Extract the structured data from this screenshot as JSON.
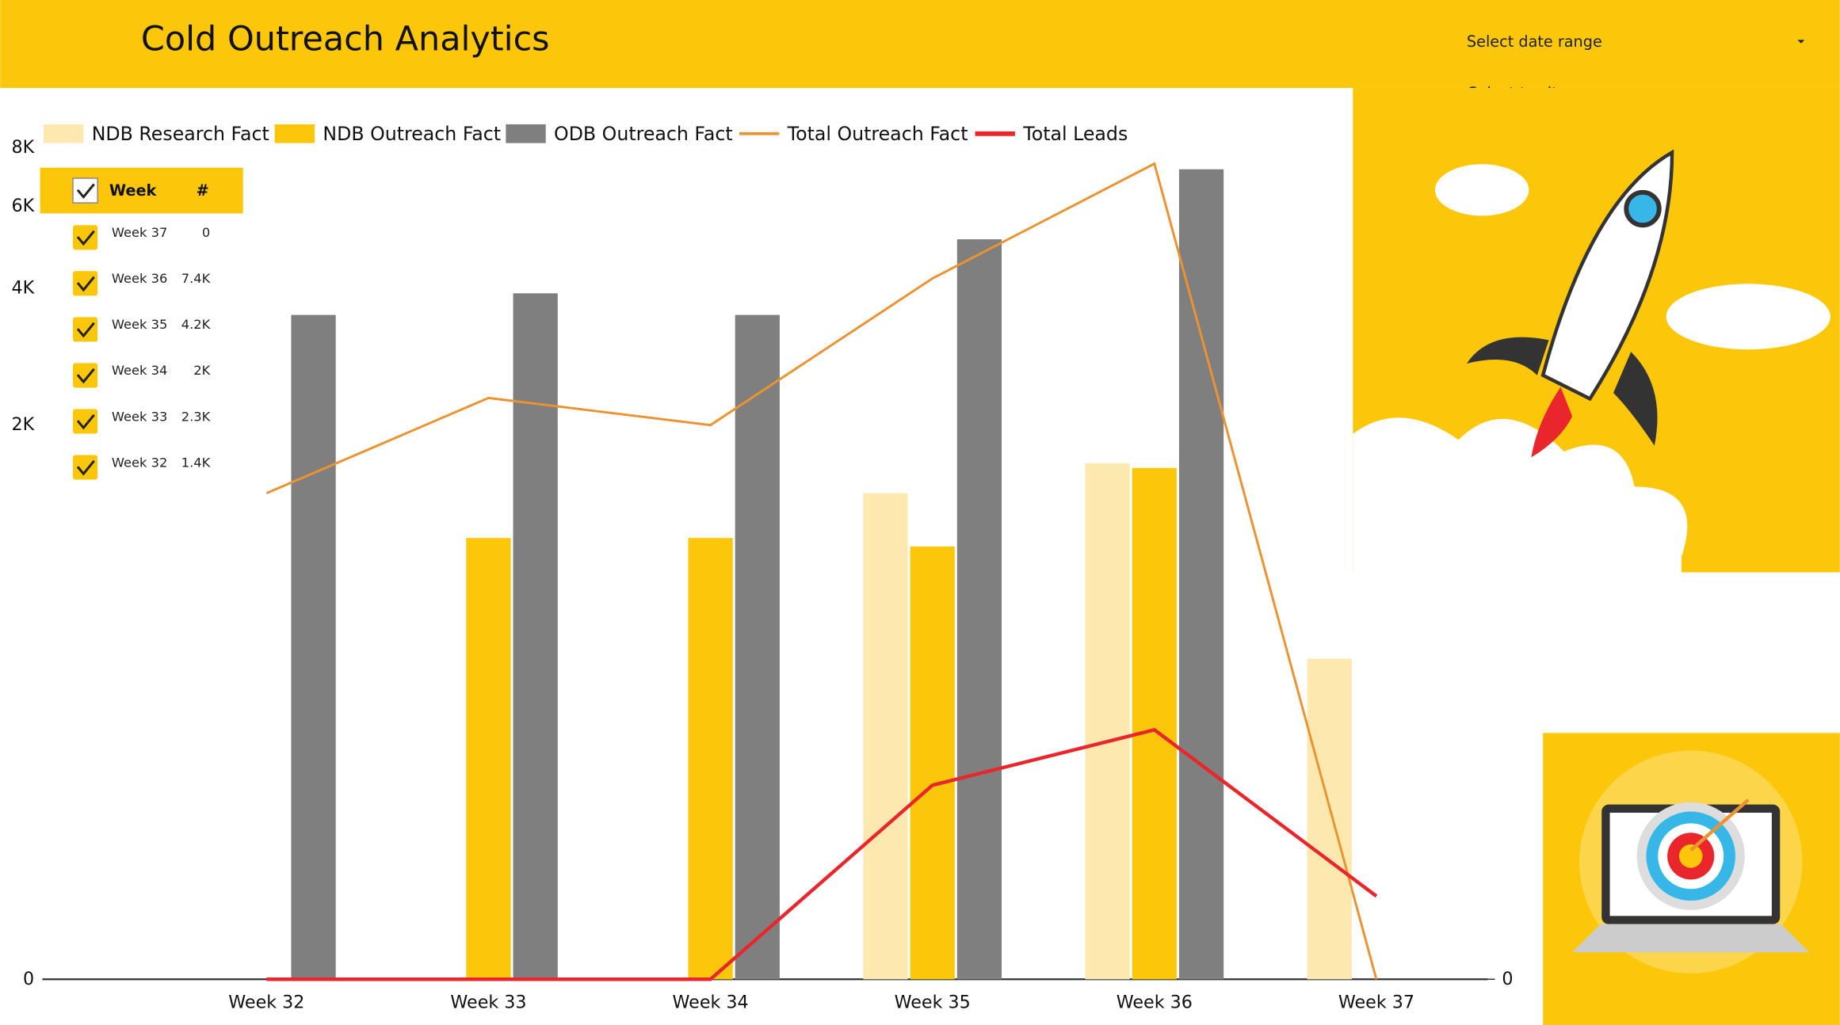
{
  "header": {
    "title": "Cold Outreach Analytics"
  },
  "filters": [
    "Select date range",
    "Select territory"
  ],
  "table": {
    "columns": [
      "Week",
      "#"
    ],
    "rows": [
      [
        "Week 37",
        "0"
      ],
      [
        "Week 36",
        "7.4K"
      ],
      [
        "Week 35",
        "4.2K"
      ],
      [
        "Week 34",
        "2K"
      ],
      [
        "Week 33",
        "2.3K"
      ],
      [
        "Week 32",
        "1.4K"
      ]
    ]
  },
  "chart_data": {
    "type": "combo",
    "categories": [
      "Week 32",
      "Week 33",
      "Week 34",
      "Week 35",
      "Week 36",
      "Week 37"
    ],
    "yscale": "symlog",
    "ylim": [
      0,
      8000
    ],
    "yticks": [
      0,
      {
        "value": 2000,
        "label": "2K"
      },
      {
        "value": 4000,
        "label": "4K"
      },
      {
        "value": 6000,
        "label": "6K"
      },
      {
        "value": 8000,
        "label": "8K"
      }
    ],
    "y2lim": [
      0,
      30
    ],
    "y2ticks": [
      0
    ],
    "series": [
      {
        "name": "NDB Research Fact",
        "type": "bar",
        "color": "#fde9b0",
        "values": [
          0,
          0,
          0,
          1400,
          1640,
          550
        ]
      },
      {
        "name": "NDB Outreach Fact",
        "type": "bar",
        "color": "#fcc70a",
        "values": [
          0,
          1100,
          1100,
          1050,
          1600,
          0
        ]
      },
      {
        "name": "ODB Outreach Fact",
        "type": "bar",
        "color": "#7f7f7f",
        "values": [
          3500,
          3900,
          3500,
          5100,
          7200,
          0
        ]
      },
      {
        "name": "Total Outreach Fact",
        "type": "line",
        "color": "#ec9331",
        "values": [
          1400,
          2300,
          2000,
          4200,
          7400,
          0
        ]
      },
      {
        "name": "Total Leads",
        "type": "line",
        "color": "#e8262c",
        "axis": "y2",
        "values": [
          0,
          0,
          0,
          7,
          9,
          3
        ]
      }
    ]
  }
}
